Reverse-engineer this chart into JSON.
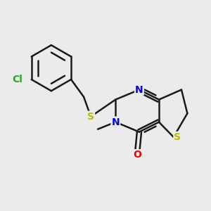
{
  "background_color": "#ebebeb",
  "bond_color": "#1a1a1a",
  "bond_width": 1.8,
  "atom_colors": {
    "N": "#0000ee",
    "S": "#bbbb00",
    "O": "#ee0000",
    "Cl": "#22aa22",
    "C": "#1a1a1a"
  },
  "font_size": 10,
  "figsize": [
    3.0,
    3.0
  ],
  "dpi": 100
}
